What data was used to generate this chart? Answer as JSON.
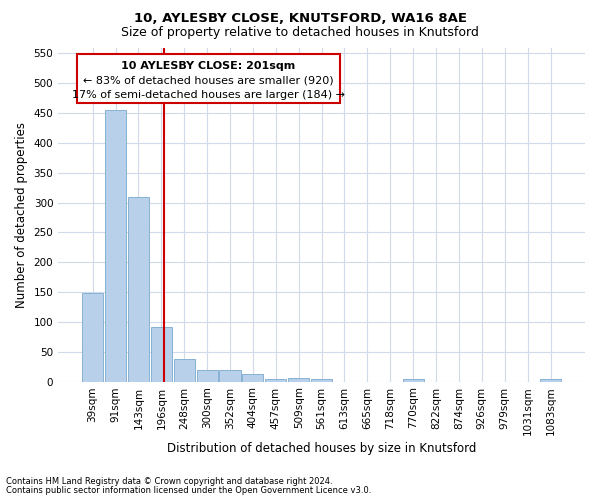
{
  "title1": "10, AYLESBY CLOSE, KNUTSFORD, WA16 8AE",
  "title2": "Size of property relative to detached houses in Knutsford",
  "xlabel": "Distribution of detached houses by size in Knutsford",
  "ylabel": "Number of detached properties",
  "footnote1": "Contains HM Land Registry data © Crown copyright and database right 2024.",
  "footnote2": "Contains public sector information licensed under the Open Government Licence v3.0.",
  "categories": [
    "39sqm",
    "91sqm",
    "143sqm",
    "196sqm",
    "248sqm",
    "300sqm",
    "352sqm",
    "404sqm",
    "457sqm",
    "509sqm",
    "561sqm",
    "613sqm",
    "665sqm",
    "718sqm",
    "770sqm",
    "822sqm",
    "874sqm",
    "926sqm",
    "979sqm",
    "1031sqm",
    "1083sqm"
  ],
  "values": [
    148,
    455,
    310,
    92,
    38,
    20,
    20,
    12,
    5,
    6,
    5,
    0,
    0,
    0,
    4,
    0,
    0,
    0,
    0,
    0,
    4
  ],
  "bar_color": "#b8d0ea",
  "bar_edge_color": "#7aaacf",
  "grid_color": "#d0daea",
  "annotation_text_line1": "10 AYLESBY CLOSE: 201sqm",
  "annotation_text_line2": "← 83% of detached houses are smaller (920)",
  "annotation_text_line3": "17% of semi-detached houses are larger (184) →",
  "annotation_box_facecolor": "#ffffff",
  "annotation_box_edgecolor": "#cc0000",
  "annotation_line_color": "#cc0000",
  "ylim": [
    0,
    560
  ],
  "yticks": [
    0,
    50,
    100,
    150,
    200,
    250,
    300,
    350,
    400,
    450,
    500,
    550
  ],
  "bg_color": "#ffffff",
  "title1_fontsize": 9.5,
  "title2_fontsize": 9,
  "axis_label_fontsize": 8.5,
  "tick_fontsize": 7.5,
  "annotation_fontsize": 8,
  "footnote_fontsize": 6
}
